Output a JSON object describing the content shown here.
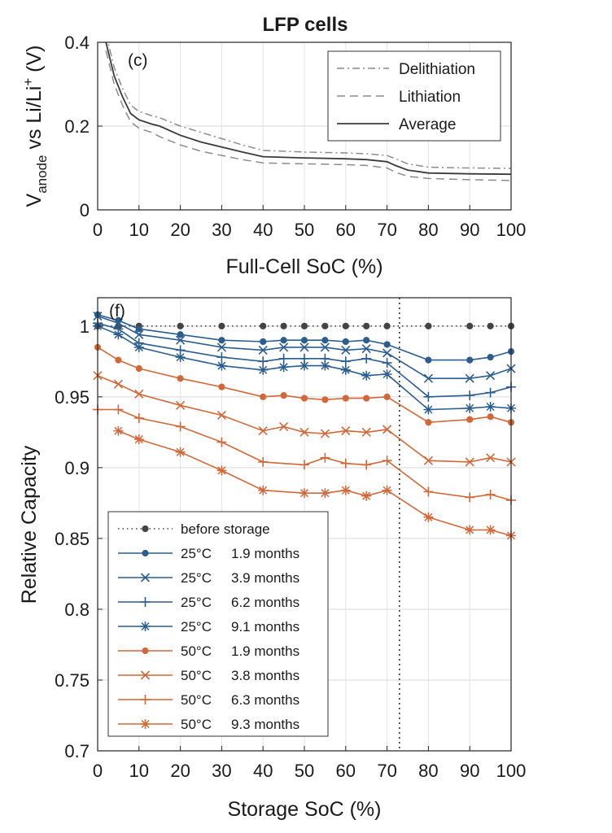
{
  "title": "LFP cells",
  "chart_data": [
    {
      "panel_label": "(c)",
      "type": "line",
      "xlabel": "Full-Cell SoC (%)",
      "ylabel_parts": {
        "base": "V",
        "sub": "anode",
        "mid": " vs Li/Li",
        "sup": "+",
        "end": " (V)"
      },
      "xlim": [
        0,
        100
      ],
      "ylim": [
        0,
        0.4
      ],
      "xticks": [
        0,
        10,
        20,
        30,
        40,
        50,
        60,
        70,
        80,
        90,
        100
      ],
      "yticks": [
        0,
        0.2,
        0.4
      ],
      "ytick_labels": [
        "0",
        "0.2",
        "0.4"
      ],
      "grid": true,
      "legend_position": "top-right",
      "series": [
        {
          "name": "Delithiation",
          "style": "dashdot",
          "x": [
            2,
            4,
            6,
            8,
            10,
            13,
            15,
            20,
            25,
            30,
            35,
            40,
            50,
            60,
            65,
            70,
            72,
            75,
            80,
            90,
            100
          ],
          "y": [
            0.42,
            0.34,
            0.29,
            0.25,
            0.235,
            0.225,
            0.22,
            0.2,
            0.185,
            0.17,
            0.155,
            0.142,
            0.138,
            0.136,
            0.134,
            0.13,
            0.122,
            0.11,
            0.102,
            0.1,
            0.099
          ]
        },
        {
          "name": "Lithiation",
          "style": "dashed",
          "x": [
            2,
            4,
            6,
            8,
            10,
            13,
            15,
            20,
            25,
            30,
            35,
            40,
            50,
            60,
            65,
            70,
            72,
            75,
            80,
            90,
            100
          ],
          "y": [
            0.38,
            0.3,
            0.25,
            0.21,
            0.195,
            0.185,
            0.175,
            0.155,
            0.14,
            0.13,
            0.12,
            0.112,
            0.11,
            0.108,
            0.106,
            0.1,
            0.09,
            0.08,
            0.075,
            0.072,
            0.07
          ]
        },
        {
          "name": "Average",
          "style": "solid",
          "x": [
            2,
            4,
            6,
            8,
            10,
            13,
            15,
            20,
            25,
            30,
            35,
            40,
            50,
            60,
            65,
            70,
            72,
            75,
            80,
            90,
            100
          ],
          "y": [
            0.4,
            0.32,
            0.27,
            0.23,
            0.215,
            0.205,
            0.2,
            0.178,
            0.162,
            0.15,
            0.138,
            0.127,
            0.124,
            0.122,
            0.12,
            0.115,
            0.106,
            0.095,
            0.088,
            0.086,
            0.085
          ]
        }
      ]
    },
    {
      "panel_label": "(f)",
      "type": "line",
      "xlabel": "Storage SoC (%)",
      "ylabel": "Relative Capacity",
      "xlim": [
        0,
        100
      ],
      "ylim": [
        0.7,
        1.02
      ],
      "xticks": [
        0,
        10,
        20,
        30,
        40,
        50,
        60,
        70,
        80,
        90,
        100
      ],
      "yticks": [
        0.7,
        0.75,
        0.8,
        0.85,
        0.9,
        0.95,
        1
      ],
      "ytick_labels": [
        "0.7",
        "0.75",
        "0.8",
        "0.85",
        "0.9",
        "0.95",
        "1"
      ],
      "grid": true,
      "vline_x": 73,
      "legend_position": "bottom-left",
      "colors": {
        "before": "#444444",
        "c25": "#2b5d8e",
        "c50": "#d0683a"
      },
      "series": [
        {
          "name": "before storage",
          "temp": "",
          "duration": "before storage",
          "color": "before",
          "marker": "dot",
          "line": "dotted",
          "x": [
            0,
            5,
            10,
            20,
            30,
            40,
            45,
            50,
            55,
            60,
            65,
            70,
            80,
            90,
            95,
            100
          ],
          "y": [
            1,
            1,
            1,
            1,
            1,
            1,
            1,
            1,
            1,
            1,
            1,
            1,
            1,
            1,
            1,
            1
          ]
        },
        {
          "name": "25°C 1.9 months",
          "temp": "25°C",
          "duration": "1.9 months",
          "color": "c25",
          "marker": "dot",
          "line": "solid",
          "x": [
            0,
            5,
            10,
            20,
            30,
            40,
            45,
            50,
            55,
            60,
            65,
            70,
            80,
            90,
            95,
            100
          ],
          "y": [
            1.008,
            1.004,
            0.998,
            0.994,
            0.99,
            0.989,
            0.99,
            0.99,
            0.99,
            0.989,
            0.99,
            0.987,
            0.976,
            0.976,
            0.978,
            0.982
          ]
        },
        {
          "name": "25°C 3.9 months",
          "temp": "25°C",
          "duration": "3.9 months",
          "color": "c25",
          "marker": "x",
          "line": "solid",
          "x": [
            0,
            5,
            10,
            20,
            30,
            40,
            45,
            50,
            55,
            60,
            65,
            70,
            80,
            90,
            95,
            100
          ],
          "y": [
            1.007,
            1.002,
            0.994,
            0.99,
            0.985,
            0.983,
            0.985,
            0.985,
            0.985,
            0.983,
            0.984,
            0.981,
            0.963,
            0.963,
            0.965,
            0.97
          ]
        },
        {
          "name": "25°C 6.2 months",
          "temp": "25°C",
          "duration": "6.2 months",
          "color": "c25",
          "marker": "plus",
          "line": "solid",
          "x": [
            0,
            5,
            10,
            20,
            30,
            40,
            45,
            50,
            55,
            60,
            65,
            70,
            80,
            90,
            95,
            100
          ],
          "y": [
            1.002,
            0.998,
            0.988,
            0.983,
            0.978,
            0.975,
            0.977,
            0.977,
            0.977,
            0.975,
            0.977,
            0.974,
            0.95,
            0.951,
            0.953,
            0.957
          ]
        },
        {
          "name": "25°C 9.1 months",
          "temp": "25°C",
          "duration": "9.1 months",
          "color": "c25",
          "marker": "star",
          "line": "solid",
          "x": [
            0,
            5,
            10,
            20,
            30,
            40,
            45,
            50,
            55,
            60,
            65,
            70,
            80,
            90,
            95,
            100
          ],
          "y": [
            1.0,
            0.994,
            0.985,
            0.978,
            0.972,
            0.969,
            0.971,
            0.972,
            0.972,
            0.969,
            0.965,
            0.966,
            0.941,
            0.942,
            0.943,
            0.942
          ]
        },
        {
          "name": "50°C 1.9 months",
          "temp": "50°C",
          "duration": "1.9 months",
          "color": "c50",
          "marker": "dot",
          "line": "solid",
          "x": [
            0,
            5,
            10,
            20,
            30,
            40,
            45,
            50,
            55,
            60,
            65,
            70,
            80,
            90,
            95,
            100
          ],
          "y": [
            0.985,
            0.976,
            0.97,
            0.963,
            0.957,
            0.95,
            0.951,
            0.949,
            0.948,
            0.949,
            0.949,
            0.95,
            0.932,
            0.934,
            0.936,
            0.932
          ]
        },
        {
          "name": "50°C 3.8 months",
          "temp": "50°C",
          "duration": "3.8 months",
          "color": "c50",
          "marker": "x",
          "line": "solid",
          "x": [
            0,
            5,
            10,
            20,
            30,
            40,
            45,
            50,
            55,
            60,
            65,
            70,
            80,
            90,
            95,
            100
          ],
          "y": [
            0.965,
            0.959,
            0.952,
            0.944,
            0.937,
            0.926,
            0.929,
            0.925,
            0.924,
            0.926,
            0.925,
            0.927,
            0.905,
            0.904,
            0.907,
            0.904
          ]
        },
        {
          "name": "50°C 6.3 months",
          "temp": "50°C",
          "duration": "6.3 months",
          "color": "c50",
          "marker": "plus",
          "line": "solid",
          "x": [
            0,
            5,
            10,
            20,
            30,
            40,
            50,
            55,
            60,
            65,
            70,
            80,
            90,
            95,
            100
          ],
          "y": [
            0.941,
            0.941,
            0.935,
            0.929,
            0.918,
            0.904,
            0.902,
            0.907,
            0.903,
            0.902,
            0.905,
            0.883,
            0.879,
            0.881,
            0.877
          ]
        },
        {
          "name": "50°C 9.3 months",
          "temp": "50°C",
          "duration": "9.3 months",
          "color": "c50",
          "marker": "star",
          "line": "solid",
          "x": [
            5,
            10,
            20,
            30,
            40,
            50,
            55,
            60,
            65,
            70,
            80,
            90,
            95,
            100
          ],
          "y": [
            0.926,
            0.92,
            0.911,
            0.898,
            0.884,
            0.882,
            0.882,
            0.884,
            0.88,
            0.884,
            0.865,
            0.856,
            0.856,
            0.852
          ]
        }
      ]
    }
  ]
}
